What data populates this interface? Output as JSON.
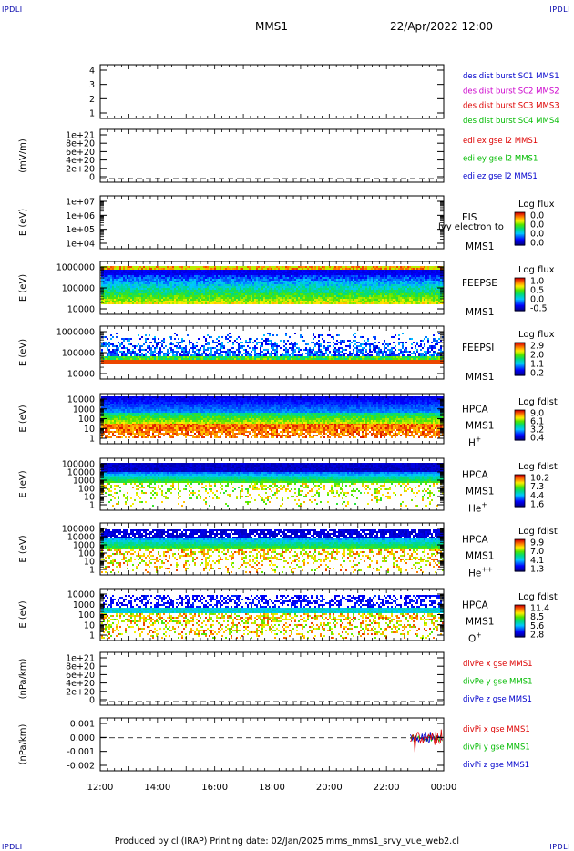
{
  "corner_label": "IPDLI",
  "header": {
    "spacecraft": "MMS1",
    "datetime": "22/Apr/2022 12:00"
  },
  "footer": "Produced by cl (IRAP)   Printing date: 02/Jan/2025   mms_mms1_srvy_vue_web2.cl",
  "colors": {
    "red": "#dd0000",
    "green": "#00bb00",
    "blue": "#0000cc",
    "magenta": "#cc00cc"
  },
  "chart_data": {
    "type": "heatmap",
    "x_range": [
      "12:00",
      "00:00"
    ],
    "x_tick_labels": [
      "12:00",
      "14:00",
      "16:00",
      "18:00",
      "20:00",
      "22:00",
      "00:00"
    ],
    "panels": [
      {
        "kind": "lines",
        "y_tick_labels": [
          "4",
          "3",
          "2",
          "1"
        ],
        "ylim": [
          0.5,
          4.5
        ],
        "zero_line": false,
        "legend": [
          {
            "text": "des dist burst SC1 MMS1",
            "color": "#0000cc"
          },
          {
            "text": "des dist burst SC2 MMS2",
            "color": "#cc00cc"
          },
          {
            "text": "des dist burst SC3 MMS3",
            "color": "#dd0000"
          },
          {
            "text": "des dist burst SC4 MMS4",
            "color": "#00bb00"
          }
        ]
      },
      {
        "kind": "lines",
        "ylabel": "(mV/m)",
        "y_tick_labels": [
          "1e+21",
          "8e+20",
          "6e+20",
          "4e+20",
          "2e+20",
          "0"
        ],
        "ylim": [
          0,
          1e+21
        ],
        "zero_line": true,
        "legend": [
          {
            "text": "edi ex gse l2 MMS1",
            "color": "#dd0000"
          },
          {
            "text": "edi ey gse l2 MMS1",
            "color": "#00bb00"
          },
          {
            "text": "edi ez gse l2 MMS1",
            "color": "#0000cc"
          }
        ]
      },
      {
        "kind": "spectrogram",
        "ylabel": "E (eV)",
        "y_tick_labels": [
          "1e+07",
          "1e+06",
          "1e+05",
          "1e+04"
        ],
        "ylim": [
          10000.0,
          10000000.0
        ],
        "labels": [
          "EIS",
          "MMS1"
        ],
        "overlap_text": "lvy electron to",
        "cbar_title": "Log flux",
        "cbar_ticks": [
          "0.0",
          "0.0",
          "0.0",
          "0.0"
        ],
        "fill": "empty"
      },
      {
        "kind": "spectrogram",
        "ylabel": "E (eV)",
        "y_tick_labels": [
          "1000000",
          "100000",
          "10000"
        ],
        "ylim": [
          10000.0,
          1000000.0
        ],
        "labels": [
          "FEEPSE",
          "MMS1"
        ],
        "cbar_title": "Log flux",
        "cbar_ticks": [
          "1.0",
          "0.5",
          "0.0",
          "-0.5"
        ],
        "fill": "feepse"
      },
      {
        "kind": "spectrogram",
        "ylabel": "E (eV)",
        "y_tick_labels": [
          "1000000",
          "100000",
          "10000"
        ],
        "ylim": [
          10000.0,
          1000000.0
        ],
        "labels": [
          "FEEPSI",
          "MMS1"
        ],
        "cbar_title": "Log flux",
        "cbar_ticks": [
          "2.9",
          "2.0",
          "1.1",
          "0.2"
        ],
        "fill": "feepsi"
      },
      {
        "kind": "spectrogram",
        "ylabel": "E (eV)",
        "y_tick_labels": [
          "10000",
          "1000",
          "100",
          "10",
          "1"
        ],
        "ylim": [
          1,
          10000.0
        ],
        "labels": [
          "HPCA",
          "MMS1"
        ],
        "species": "H",
        "species_sup": "+",
        "cbar_title": "Log fdist",
        "cbar_ticks": [
          "9.0",
          "6.1",
          "3.2",
          "0.4"
        ],
        "fill": "hplus"
      },
      {
        "kind": "spectrogram",
        "ylabel": "E (eV)",
        "y_tick_labels": [
          "100000",
          "10000",
          "1000",
          "100",
          "10",
          "1"
        ],
        "ylim": [
          1,
          100000.0
        ],
        "labels": [
          "HPCA",
          "MMS1"
        ],
        "species": "He",
        "species_sup": "+",
        "cbar_title": "Log fdist",
        "cbar_ticks": [
          "10.2",
          "7.3",
          "4.4",
          "1.6"
        ],
        "fill": "heplus"
      },
      {
        "kind": "spectrogram",
        "ylabel": "E (eV)",
        "y_tick_labels": [
          "100000",
          "10000",
          "1000",
          "100",
          "10",
          "1"
        ],
        "ylim": [
          1,
          100000.0
        ],
        "labels": [
          "HPCA",
          "MMS1"
        ],
        "species": "He",
        "species_sup": "++",
        "cbar_title": "Log fdist",
        "cbar_ticks": [
          "9.9",
          "7.0",
          "4.1",
          "1.3"
        ],
        "fill": "heplusplus"
      },
      {
        "kind": "spectrogram",
        "ylabel": "E (eV)",
        "y_tick_labels": [
          "10000",
          "1000",
          "100",
          "10",
          "1"
        ],
        "ylim": [
          1,
          10000.0
        ],
        "labels": [
          "HPCA",
          "MMS1"
        ],
        "species": "O",
        "species_sup": "+",
        "cbar_title": "Log fdist",
        "cbar_ticks": [
          "11.4",
          "8.5",
          "5.6",
          "2.8"
        ],
        "fill": "oplus"
      },
      {
        "kind": "lines",
        "ylabel": "(nPa/km)",
        "y_tick_labels": [
          "1e+21",
          "8e+20",
          "6e+20",
          "4e+20",
          "2e+20",
          "0"
        ],
        "ylim": [
          0,
          1e+21
        ],
        "zero_line": true,
        "legend": [
          {
            "text": "divPe x gse MMS1",
            "color": "#dd0000"
          },
          {
            "text": "divPe y gse MMS1",
            "color": "#00bb00"
          },
          {
            "text": "divPe z gse MMS1",
            "color": "#0000cc"
          }
        ]
      },
      {
        "kind": "lines",
        "ylabel": "(nPa/km)",
        "y_tick_labels": [
          "0.001",
          "0.000",
          "-0.001",
          "-0.002"
        ],
        "ylim": [
          -0.0025,
          0.0015
        ],
        "zero_line": true,
        "data_start": "22:50",
        "legend": [
          {
            "text": "divPi x gse MMS1",
            "color": "#dd0000"
          },
          {
            "text": "divPi y gse MMS1",
            "color": "#00bb00"
          },
          {
            "text": "divPi z gse MMS1",
            "color": "#0000cc"
          }
        ]
      }
    ]
  }
}
